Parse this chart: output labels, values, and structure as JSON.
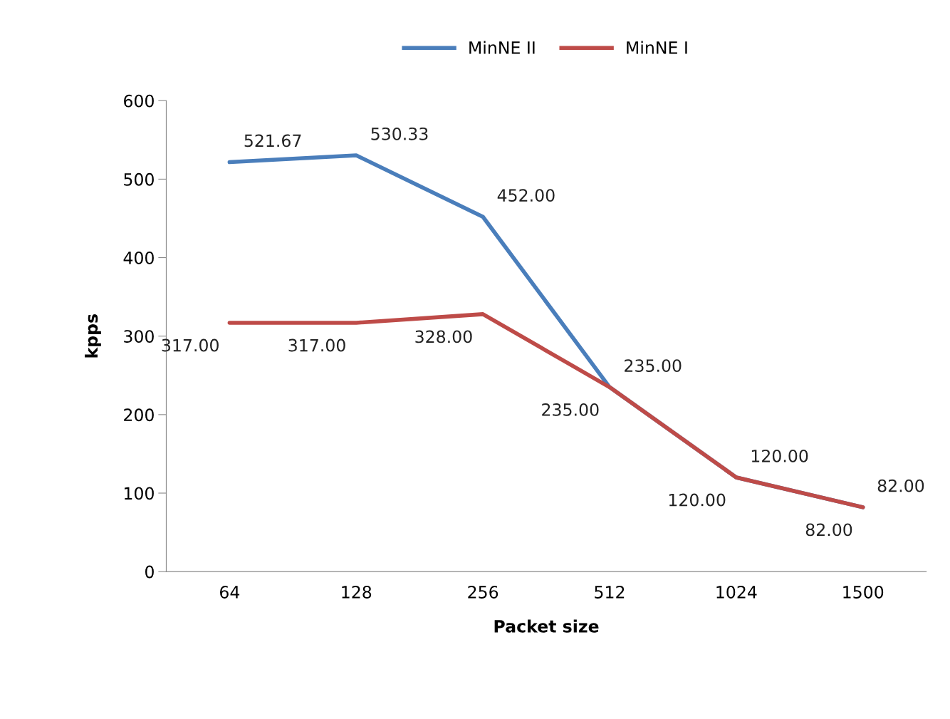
{
  "chart_data": {
    "type": "line",
    "xlabel": "Packet size",
    "ylabel": "kpps",
    "categories": [
      "64",
      "128",
      "256",
      "512",
      "1024",
      "1500"
    ],
    "series": [
      {
        "name": "MinNE II",
        "color": "#4a7ebb",
        "values": [
          521.67,
          530.33,
          452.0,
          235.0,
          120.0,
          82.0
        ],
        "value_labels": [
          "521.67",
          "530.33",
          "452.00",
          "235.00",
          "120.00",
          "82.00"
        ]
      },
      {
        "name": "MinNE I",
        "color": "#be4b48",
        "values": [
          317.0,
          317.0,
          328.0,
          235.0,
          120.0,
          82.0
        ],
        "value_labels": [
          "317.00",
          "317.00",
          "328.00",
          "235.00",
          "120.00",
          "82.00"
        ]
      }
    ],
    "ylim": [
      0,
      600
    ],
    "yticks": [
      0,
      100,
      200,
      300,
      400,
      500,
      600
    ],
    "legend": "top",
    "grid": false,
    "marker": "none",
    "line_style": "solid"
  }
}
